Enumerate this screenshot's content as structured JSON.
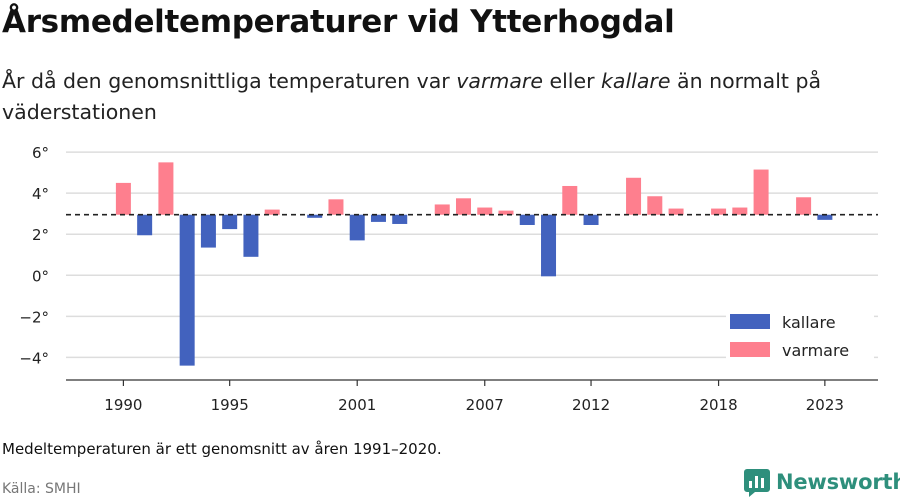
{
  "title": "Årsmedeltemperaturer vid Ytterhogdal",
  "subtitle": {
    "part1": "År då den genomsnittliga temperaturen var ",
    "warmer": "varmare",
    "part2": " eller ",
    "colder": "kallare",
    "part3": " än normalt på väderstationen"
  },
  "note": "Medeltemperaturen är ett genomsnitt av åren 1991–2020.",
  "source": "Källa: SMHI",
  "brand": {
    "name": "Newsworthy",
    "icon": "newsworthy-logo-icon",
    "color": "#2e8f7c"
  },
  "chart_data": {
    "type": "bar",
    "baseline": 2.95,
    "ylim": [
      -5.1,
      6.2
    ],
    "yticks": [
      6,
      4,
      2,
      0,
      -2,
      -4
    ],
    "ytick_labels": [
      "6°",
      "4°",
      "2°",
      "0°",
      "−2°",
      "−4°"
    ],
    "xlim": [
      1987.3,
      2025.5
    ],
    "xticks": [
      1990,
      1995,
      2001,
      2007,
      2012,
      2018,
      2023
    ],
    "xtick_labels": [
      "1990",
      "1995",
      "2001",
      "2007",
      "2012",
      "2018",
      "2023"
    ],
    "grid": true,
    "legend_position": "bottom-right",
    "colors": {
      "kallare": "#4262be",
      "varmare": "#fe7f8e",
      "baseline": "#222222"
    },
    "series": [
      {
        "name": "kallare",
        "color": "#4262be"
      },
      {
        "name": "varmare",
        "color": "#fe7f8e"
      }
    ],
    "data": [
      {
        "year": 1990,
        "value": 4.5
      },
      {
        "year": 1991,
        "value": 1.95
      },
      {
        "year": 1992,
        "value": 5.5
      },
      {
        "year": 1993,
        "value": -4.4
      },
      {
        "year": 1994,
        "value": 1.35
      },
      {
        "year": 1995,
        "value": 2.25
      },
      {
        "year": 1996,
        "value": 0.9
      },
      {
        "year": 1997,
        "value": 3.2
      },
      {
        "year": 1999,
        "value": 2.8
      },
      {
        "year": 2000,
        "value": 3.7
      },
      {
        "year": 2001,
        "value": 1.7
      },
      {
        "year": 2002,
        "value": 2.6
      },
      {
        "year": 2003,
        "value": 2.5
      },
      {
        "year": 2005,
        "value": 3.45
      },
      {
        "year": 2006,
        "value": 3.75
      },
      {
        "year": 2007,
        "value": 3.3
      },
      {
        "year": 2008,
        "value": 3.15
      },
      {
        "year": 2009,
        "value": 2.45
      },
      {
        "year": 2010,
        "value": -0.05
      },
      {
        "year": 2011,
        "value": 4.35
      },
      {
        "year": 2012,
        "value": 2.45
      },
      {
        "year": 2014,
        "value": 4.75
      },
      {
        "year": 2015,
        "value": 3.85
      },
      {
        "year": 2016,
        "value": 3.25
      },
      {
        "year": 2018,
        "value": 3.25
      },
      {
        "year": 2019,
        "value": 3.3
      },
      {
        "year": 2020,
        "value": 5.15
      },
      {
        "year": 2022,
        "value": 3.8
      },
      {
        "year": 2023,
        "value": 2.7
      }
    ]
  }
}
